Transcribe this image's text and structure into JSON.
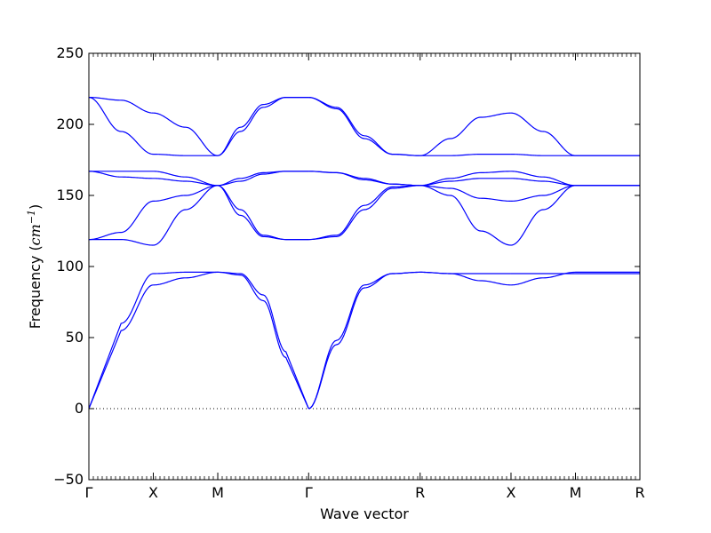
{
  "chart_data": {
    "type": "line",
    "xlabel": "Wave vector",
    "ylabel": {
      "prefix": "Frequency (",
      "unit_base": "cm",
      "unit_exponent": "−1",
      "suffix": ")"
    },
    "ylim": [
      -50,
      250
    ],
    "yticks": [
      "250",
      "200",
      "150",
      "100",
      "50",
      "0",
      "−50"
    ],
    "x_points": [
      {
        "label": "Γ",
        "x": 0
      },
      {
        "label": "X",
        "x": 1
      },
      {
        "label": "M",
        "x": 2
      },
      {
        "label": "Γ",
        "x": 3.41
      },
      {
        "label": "R",
        "x": 5.14
      },
      {
        "label": "X",
        "x": 6.55
      },
      {
        "label": "M",
        "x": 7.55
      },
      {
        "label": "R",
        "x": 8.55
      }
    ],
    "xlim": [
      0,
      8.55
    ],
    "zero_line": true,
    "grid": false,
    "line_color": "#0000ff",
    "segments": [
      {
        "path": "Γ-X",
        "bands": [
          {
            "y": [
              0,
              55,
              87
            ],
            "shape": "acoustic"
          },
          {
            "y": [
              0,
              60,
              95
            ],
            "shape": "acoustic"
          },
          {
            "y": [
              119,
              119,
              115
            ],
            "shape": "mid"
          },
          {
            "y": [
              119,
              124,
              146
            ],
            "shape": "mid"
          },
          {
            "y": [
              167,
              167,
              167
            ]
          },
          {
            "y": [
              167,
              163,
              162
            ]
          },
          {
            "y": [
              219,
              195,
              179
            ]
          },
          {
            "y": [
              219,
              217,
              208
            ]
          }
        ]
      },
      {
        "path": "X-M",
        "bands": [
          {
            "y": [
              87,
              92,
              96
            ]
          },
          {
            "y": [
              95,
              96,
              96
            ]
          },
          {
            "y": [
              115,
              140,
              157
            ]
          },
          {
            "y": [
              146,
              150,
              157
            ]
          },
          {
            "y": [
              167,
              163,
              157
            ]
          },
          {
            "y": [
              162,
              160,
              157
            ]
          },
          {
            "y": [
              179,
              178,
              178
            ]
          },
          {
            "y": [
              208,
              198,
              178
            ]
          }
        ]
      },
      {
        "path": "M-Γ",
        "bands": [
          {
            "y": [
              96,
              95,
              80,
              40,
              0
            ],
            "shape": "acoustic-down"
          },
          {
            "y": [
              96,
              94,
              76,
              36,
              0
            ],
            "shape": "acoustic-down"
          },
          {
            "y": [
              157,
              140,
              122,
              119,
              119
            ]
          },
          {
            "y": [
              157,
              136,
              121,
              119,
              119
            ]
          },
          {
            "y": [
              157,
              162,
              166,
              167,
              167
            ]
          },
          {
            "y": [
              157,
              160,
              165,
              167,
              167
            ]
          },
          {
            "y": [
              178,
              195,
              212,
              219,
              219
            ]
          },
          {
            "y": [
              178,
              198,
              214,
              219,
              219
            ]
          }
        ]
      },
      {
        "path": "Γ-R",
        "bands": [
          {
            "y": [
              0,
              45,
              85,
              95,
              96
            ]
          },
          {
            "y": [
              0,
              48,
              87,
              95,
              96
            ]
          },
          {
            "y": [
              119,
              121,
              140,
              155,
              157
            ]
          },
          {
            "y": [
              119,
              122,
              143,
              156,
              157
            ]
          },
          {
            "y": [
              167,
              166,
              162,
              158,
              157
            ]
          },
          {
            "y": [
              167,
              166,
              161,
              158,
              157
            ]
          },
          {
            "y": [
              219,
              212,
              192,
              179,
              178
            ]
          },
          {
            "y": [
              219,
              211,
              190,
              179,
              178
            ]
          }
        ]
      },
      {
        "path": "R-X",
        "bands": [
          {
            "y": [
              96,
              95,
              90,
              87
            ]
          },
          {
            "y": [
              96,
              95,
              95,
              95
            ]
          },
          {
            "y": [
              157,
              150,
              125,
              115
            ]
          },
          {
            "y": [
              157,
              155,
              148,
              146
            ]
          },
          {
            "y": [
              157,
              160,
              162,
              162
            ]
          },
          {
            "y": [
              157,
              162,
              166,
              167
            ]
          },
          {
            "y": [
              178,
              190,
              205,
              208
            ]
          },
          {
            "y": [
              178,
              178,
              179,
              179
            ]
          }
        ]
      },
      {
        "path": "X-M",
        "bands": [
          {
            "y": [
              87,
              92,
              96
            ]
          },
          {
            "y": [
              95,
              95,
              95
            ]
          },
          {
            "y": [
              115,
              140,
              157
            ]
          },
          {
            "y": [
              146,
              150,
              157
            ]
          },
          {
            "y": [
              162,
              160,
              157
            ]
          },
          {
            "y": [
              167,
              163,
              157
            ]
          },
          {
            "y": [
              208,
              195,
              178
            ]
          },
          {
            "y": [
              179,
              178,
              178
            ]
          }
        ]
      },
      {
        "path": "M-R",
        "bands": [
          {
            "y": [
              96,
              96,
              96
            ]
          },
          {
            "y": [
              95,
              95,
              95
            ]
          },
          {
            "y": [
              157,
              157,
              157
            ]
          },
          {
            "y": [
              157,
              157,
              157
            ]
          },
          {
            "y": [
              157,
              157,
              157
            ]
          },
          {
            "y": [
              157,
              157,
              157
            ]
          },
          {
            "y": [
              178,
              178,
              178
            ]
          },
          {
            "y": [
              178,
              178,
              178
            ]
          }
        ]
      }
    ]
  }
}
